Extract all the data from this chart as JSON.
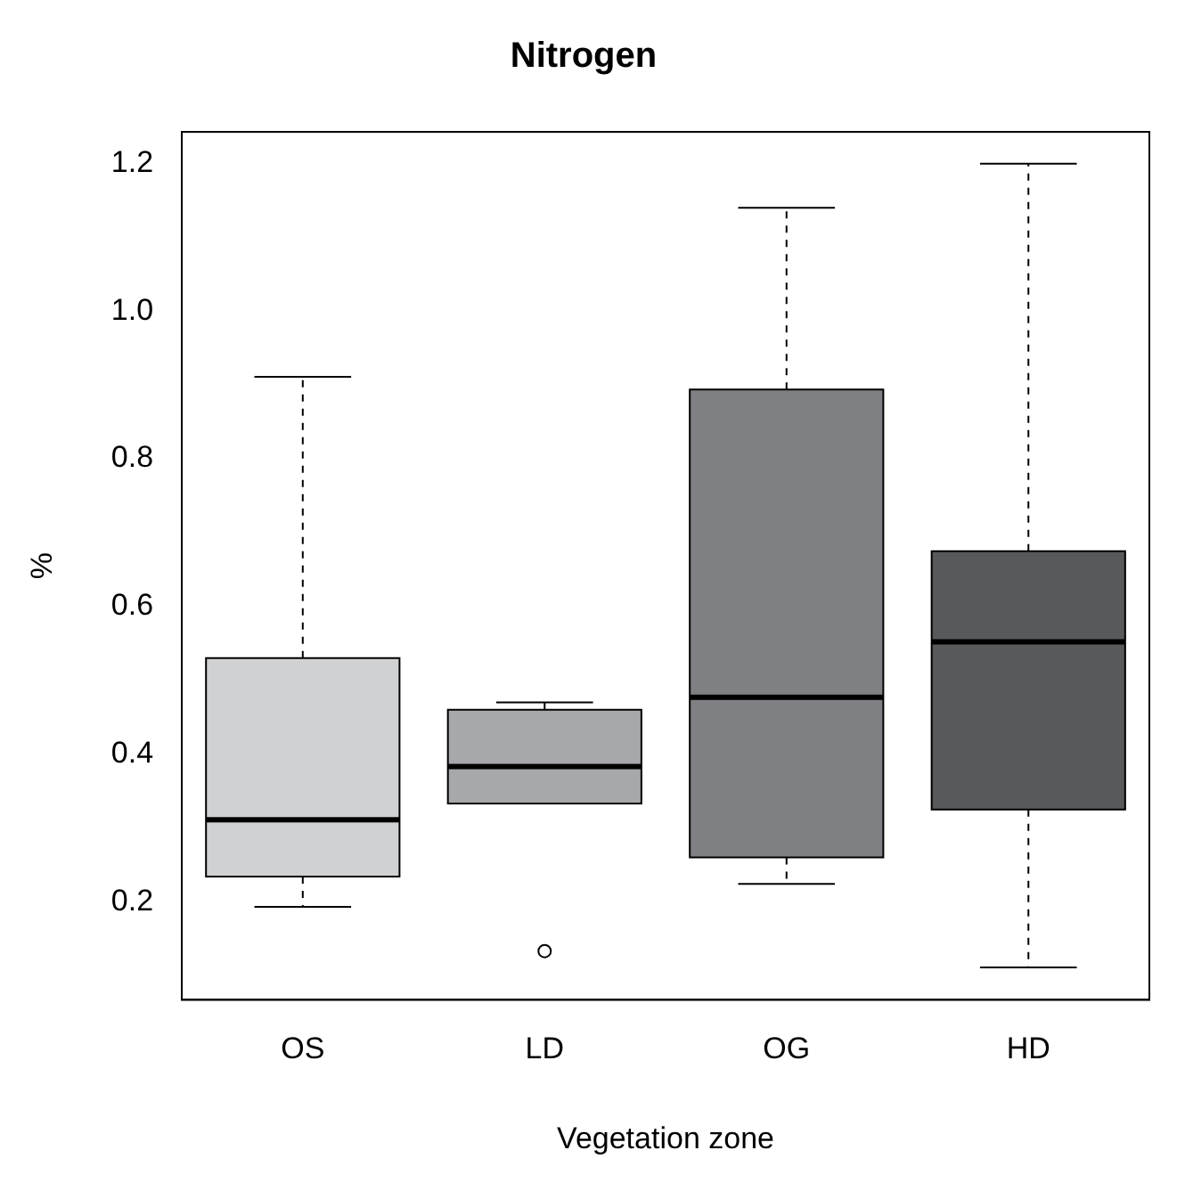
{
  "chart_data": {
    "type": "box",
    "title": "Nitrogen",
    "xlabel": "Vegetation zone",
    "ylabel": "%",
    "categories": [
      "OS",
      "LD",
      "OG",
      "HD"
    ],
    "colors": [
      "#d0d1d3",
      "#a7a8ab",
      "#7f8083",
      "#58595b"
    ],
    "boxes": [
      {
        "low": 0.193,
        "q1": 0.234,
        "median": 0.311,
        "q3": 0.53,
        "high": 0.911
      },
      {
        "low": 0.333,
        "q1": 0.333,
        "median": 0.383,
        "q3": 0.46,
        "high": 0.47,
        "outliers": [
          0.133
        ]
      },
      {
        "low": 0.224,
        "q1": 0.26,
        "median": 0.477,
        "q3": 0.894,
        "high": 1.14
      },
      {
        "low": 0.111,
        "q1": 0.325,
        "median": 0.552,
        "q3": 0.675,
        "high": 1.2
      }
    ],
    "ylim": [
      0.067,
      1.243
    ],
    "yticks": [
      0.2,
      0.4,
      0.6,
      0.8,
      {
        "value": 1,
        "label": "1.0"
      },
      1.2
    ],
    "grid": false,
    "legend": false
  }
}
